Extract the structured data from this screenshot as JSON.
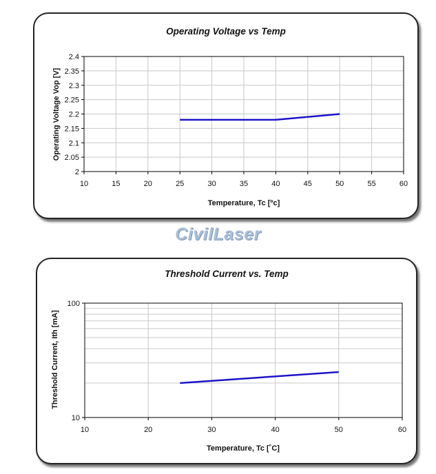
{
  "watermark": "CivilLaser",
  "colors": {
    "series": "#1c12c8",
    "grid": "#c8c8c8",
    "watermark": "#a9bfd9"
  },
  "chart_data": [
    {
      "type": "line",
      "title": "Operating Voltage vs Temp",
      "xlabel": "Temperature, Tc [ºc]",
      "ylabel": "Operating Voltage Vop [V]",
      "xlim": [
        10,
        60
      ],
      "ylim": [
        2,
        2.4
      ],
      "xticks": [
        "10",
        "15",
        "20",
        "25",
        "30",
        "35",
        "40",
        "45",
        "50",
        "55",
        "60"
      ],
      "yticks": [
        "2",
        "2.05",
        "2.1",
        "2.15",
        "2.2",
        "2.25",
        "2.3",
        "2.35",
        "2.4"
      ],
      "yscale": "linear",
      "grid": true,
      "series": [
        {
          "x": [
            25,
            40,
            50
          ],
          "y": [
            2.18,
            2.18,
            2.2
          ]
        }
      ]
    },
    {
      "type": "line",
      "title": "Threshold Current vs. Temp",
      "xlabel": "Temperature, Tc [˚C]",
      "ylabel": "Threshold Current, Ith [mA]",
      "xlim": [
        10,
        60
      ],
      "ylim": [
        10,
        100
      ],
      "xticks": [
        "10",
        "20",
        "30",
        "40",
        "50",
        "60"
      ],
      "yticks": [
        "10",
        "100"
      ],
      "yscale": "log",
      "grid": true,
      "series": [
        {
          "x": [
            25,
            50
          ],
          "y": [
            20,
            25
          ]
        }
      ]
    }
  ]
}
